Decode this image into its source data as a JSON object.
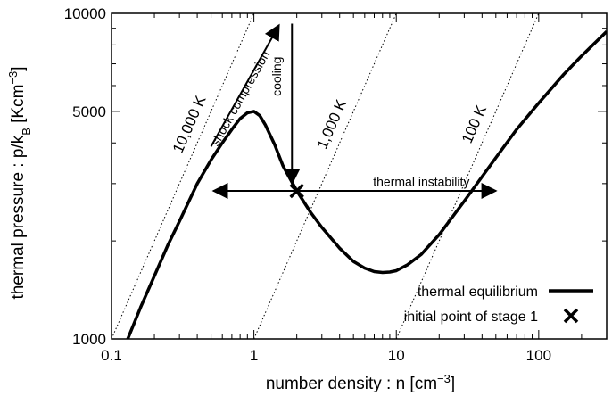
{
  "chart_data": {
    "type": "line",
    "xscale": "log",
    "yscale": "log",
    "xlim": [
      0.1,
      300
    ],
    "ylim": [
      1000,
      10000
    ],
    "xticks": [
      {
        "value": 0.1,
        "label": "0.1"
      },
      {
        "value": 1,
        "label": "1"
      },
      {
        "value": 10,
        "label": "10"
      },
      {
        "value": 100,
        "label": "100"
      }
    ],
    "yticks": [
      {
        "value": 1000,
        "label": "1000"
      },
      {
        "value": 5000,
        "label": "5000"
      },
      {
        "value": 10000,
        "label": "10000"
      }
    ],
    "xlabel": {
      "main": "number density : n [cm",
      "sup": "−3",
      "end": "]"
    },
    "ylabel": {
      "main": "thermal pressure : p/k",
      "sub": "B",
      "mid": " [Kcm",
      "sup": "−3",
      "end": "]"
    },
    "grid": false,
    "legend_position": "bottom-right",
    "series": [
      {
        "name": "thermal equilibrium",
        "style": "solid-thick",
        "color": "#000000",
        "points": [
          [
            0.13,
            1000
          ],
          [
            0.16,
            1250
          ],
          [
            0.2,
            1560
          ],
          [
            0.25,
            1950
          ],
          [
            0.3,
            2300
          ],
          [
            0.4,
            3000
          ],
          [
            0.5,
            3550
          ],
          [
            0.6,
            4000
          ],
          [
            0.7,
            4400
          ],
          [
            0.8,
            4750
          ],
          [
            0.9,
            4950
          ],
          [
            1.0,
            5000
          ],
          [
            1.1,
            4850
          ],
          [
            1.2,
            4550
          ],
          [
            1.4,
            3950
          ],
          [
            1.6,
            3400
          ],
          [
            2.0,
            2850
          ],
          [
            2.5,
            2450
          ],
          [
            3.0,
            2200
          ],
          [
            4.0,
            1900
          ],
          [
            5.0,
            1730
          ],
          [
            6.0,
            1650
          ],
          [
            7.0,
            1610
          ],
          [
            8.0,
            1600
          ],
          [
            9.0,
            1605
          ],
          [
            10.0,
            1620
          ],
          [
            12.0,
            1690
          ],
          [
            15.0,
            1820
          ],
          [
            20.0,
            2090
          ],
          [
            30.0,
            2650
          ],
          [
            50.0,
            3600
          ],
          [
            70.0,
            4400
          ],
          [
            100.0,
            5300
          ],
          [
            150.0,
            6500
          ],
          [
            200.0,
            7400
          ],
          [
            300.0,
            8800
          ]
        ]
      }
    ],
    "isotherms": [
      {
        "label": "10,000 K",
        "style": "dotted",
        "points": [
          [
            0.1,
            1000
          ],
          [
            1.0,
            10000
          ]
        ],
        "label_at": [
          0.45,
          4500
        ]
      },
      {
        "label": "1,000 K",
        "style": "dotted",
        "points": [
          [
            1.0,
            1000
          ],
          [
            10.0,
            10000
          ]
        ],
        "label_at": [
          4.5,
          4500
        ]
      },
      {
        "label": "100 K",
        "style": "dotted",
        "points": [
          [
            10.0,
            1000
          ],
          [
            100.0,
            10000
          ]
        ],
        "label_at": [
          45,
          4500
        ]
      }
    ],
    "initial_point": {
      "name": "initial point of stage 1",
      "marker": "x",
      "x": 2.0,
      "y": 2850
    },
    "annotations": [
      {
        "text": "thermal instability",
        "type": "double-arrow",
        "from": [
          0.52,
          2850
        ],
        "to": [
          50,
          2850
        ],
        "label_at": [
          15,
          2950
        ]
      },
      {
        "text": "cooling",
        "type": "arrow",
        "from": [
          1.85,
          9300
        ],
        "to": [
          1.85,
          3000
        ],
        "label_at": [
          1.55,
          6400
        ],
        "rotate": -90
      },
      {
        "text": "shock compression",
        "type": "arrow",
        "from": [
          0.5,
          3900
        ],
        "to": [
          1.5,
          9200
        ],
        "label_at": [
          0.85,
          5400
        ]
      }
    ]
  }
}
